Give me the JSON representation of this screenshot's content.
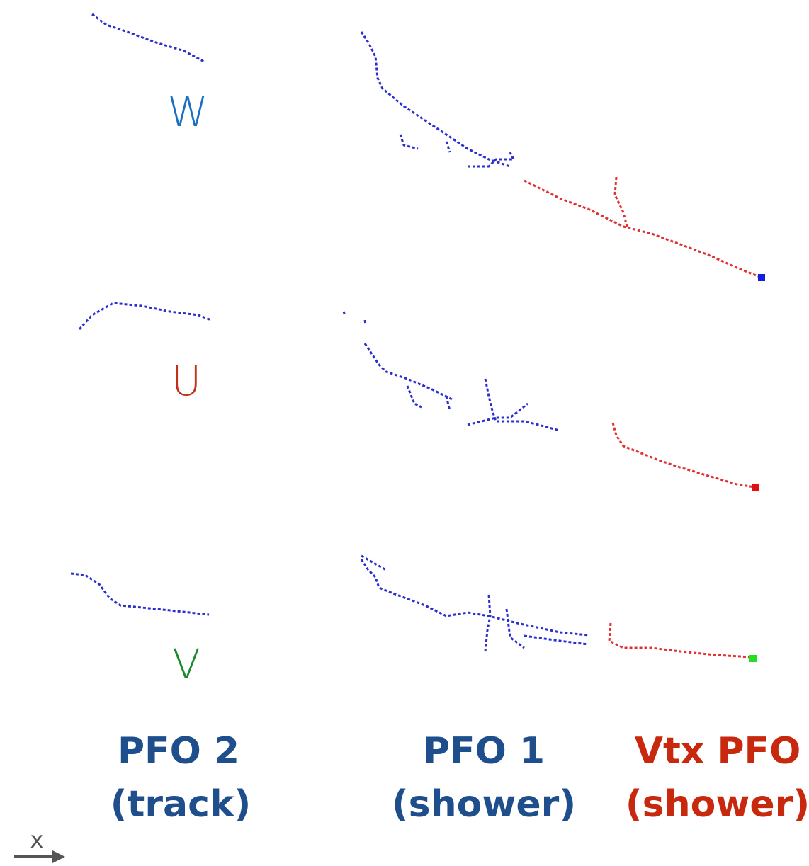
{
  "views": [
    {
      "label": "W"
    },
    {
      "label": "U"
    },
    {
      "label": "V"
    }
  ],
  "pfos": [
    {
      "name": "PFO 2",
      "kind": "(track)"
    },
    {
      "name": "PFO 1",
      "kind": "(shower)"
    },
    {
      "name": "Vtx PFO",
      "kind": "(shower)"
    }
  ],
  "axis": {
    "label": "x"
  }
}
